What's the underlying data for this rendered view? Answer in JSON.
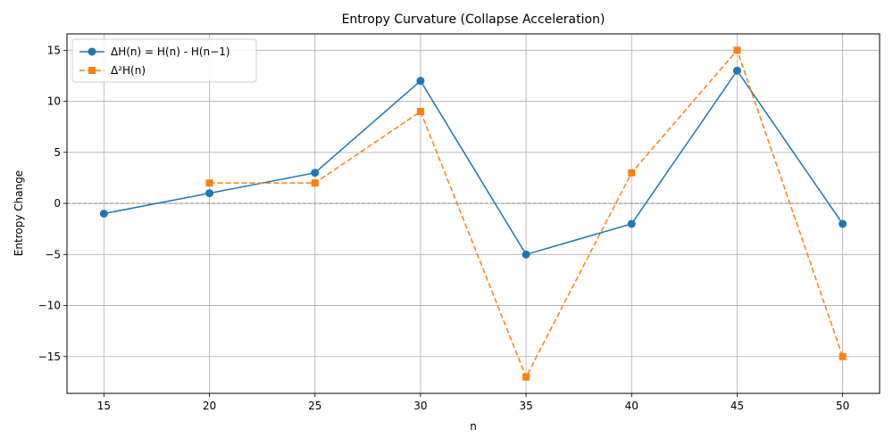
{
  "chart_data": {
    "type": "line",
    "title": "Entropy Curvature (Collapse Acceleration)",
    "xlabel": "n",
    "ylabel": "Entropy Change",
    "x_ticks": [
      15,
      20,
      25,
      30,
      35,
      40,
      45,
      50
    ],
    "y_ticks": [
      -15,
      -10,
      -5,
      0,
      5,
      10,
      15
    ],
    "x_tick_labels": [
      "15",
      "20",
      "25",
      "30",
      "35",
      "40",
      "45",
      "50"
    ],
    "y_tick_labels": [
      "−15",
      "−10",
      "−5",
      "0",
      "5",
      "10",
      "15"
    ],
    "xlim": [
      13.25,
      51.75
    ],
    "ylim": [
      -18.6,
      16.6
    ],
    "grid": true,
    "legend_position": "top-left",
    "reference_line": {
      "y": 0,
      "style": "dashed",
      "color": "#808080"
    },
    "series": [
      {
        "name": "ΔH(n) = H(n) - H(n−1)",
        "color": "#1f77b4",
        "marker": "circle",
        "linestyle": "solid",
        "x": [
          15,
          20,
          25,
          30,
          35,
          40,
          45,
          50
        ],
        "y": [
          -1,
          1,
          3,
          12,
          -5,
          -2,
          13,
          -2
        ]
      },
      {
        "name": "Δ²H(n)",
        "color": "#ff7f0e",
        "marker": "square",
        "linestyle": "dashed",
        "x": [
          20,
          25,
          30,
          35,
          40,
          45,
          50
        ],
        "y": [
          2,
          2,
          9,
          -17,
          3,
          15,
          -15
        ]
      }
    ]
  }
}
